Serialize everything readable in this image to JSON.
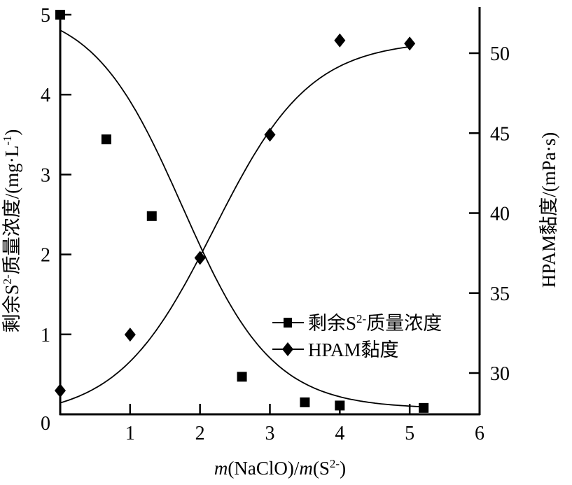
{
  "chart_data": {
    "type": "line",
    "title": "",
    "xlabel": "m(NaClO)/m(S2-)",
    "xlabel_parts": {
      "m1": "m",
      "mid": "(NaClO)/",
      "m2": "m",
      "s": "(S",
      "sup": "2-",
      "close": ")"
    },
    "ylabel_left": "剩余S2-质量浓度/(mg·L-1)",
    "ylabel_left_parts": {
      "a": "剩余S",
      "sup1": "2-",
      "b": "质量浓度/(mg·L",
      "sup2": "-1",
      "c": ")"
    },
    "ylabel_right": "HPAM黏度/(mPa·s)",
    "xlim": [
      0,
      6
    ],
    "ylim_left": [
      0,
      5
    ],
    "ylim_right": [
      27.5,
      52.5
    ],
    "x_ticks": [
      "0",
      "1",
      "2",
      "3",
      "4",
      "5",
      "6"
    ],
    "y_left_ticks": [
      "0",
      "1",
      "2",
      "3",
      "4",
      "5"
    ],
    "y_right_ticks": [
      "30",
      "35",
      "40",
      "45",
      "50"
    ],
    "grid": false,
    "legend_position": "lower-right inside",
    "series": [
      {
        "name": "剩余S2-质量浓度",
        "legend_parts": {
          "a": "剩余S",
          "sup": "2-",
          "b": "质量浓度"
        },
        "axis": "left",
        "marker": "square",
        "x": [
          0,
          0.66,
          1.31,
          2.6,
          3.5,
          4.0,
          5.2
        ],
        "values": [
          5.0,
          3.44,
          2.48,
          0.47,
          0.15,
          0.11,
          0.08
        ]
      },
      {
        "name": "HPAM黏度",
        "axis": "right",
        "marker": "diamond",
        "x": [
          0,
          1,
          2,
          3,
          4,
          5
        ],
        "values": [
          28.9,
          32.4,
          37.2,
          44.9,
          50.8,
          50.6
        ]
      }
    ]
  }
}
